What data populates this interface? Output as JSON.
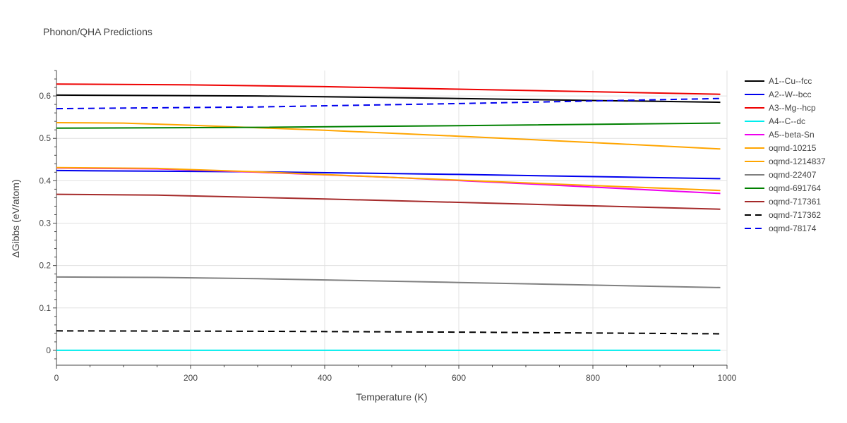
{
  "chart_data": {
    "type": "line",
    "title": "Phonon/QHA Predictions",
    "xlabel": "Temperature (K)",
    "ylabel": "ΔGibbs (eV/atom)",
    "xlim": [
      0,
      1000
    ],
    "ylim": [
      -0.035,
      0.66
    ],
    "x_ticks": [
      0,
      200,
      400,
      600,
      800,
      1000
    ],
    "y_ticks": [
      0,
      0.1,
      0.2,
      0.3,
      0.4,
      0.5,
      0.6
    ],
    "x_tick_labels": [
      "0",
      "200",
      "400",
      "600",
      "800",
      "1000"
    ],
    "y_tick_labels": [
      "0",
      "0.1",
      "0.2",
      "0.3",
      "0.4",
      "0.5",
      "0.6"
    ],
    "grid": true,
    "legend_position": "right",
    "series": [
      {
        "name": "A1--Cu--fcc",
        "color": "#000000",
        "dash": "solid",
        "x": [
          0,
          300,
          600,
          990
        ],
        "y": [
          0.602,
          0.6,
          0.594,
          0.585
        ]
      },
      {
        "name": "A2--W--bcc",
        "color": "#0000ee",
        "dash": "solid",
        "x": [
          0,
          300,
          600,
          990
        ],
        "y": [
          0.424,
          0.421,
          0.415,
          0.405
        ]
      },
      {
        "name": "A3--Mg--hcp",
        "color": "#ee0000",
        "dash": "solid",
        "x": [
          0,
          200,
          400,
          600,
          800,
          990
        ],
        "y": [
          0.628,
          0.626,
          0.622,
          0.616,
          0.61,
          0.604
        ]
      },
      {
        "name": "A4--C--dc",
        "color": "#00eeee",
        "dash": "solid",
        "x": [
          0,
          990
        ],
        "y": [
          0.0,
          0.0
        ]
      },
      {
        "name": "A5--beta-Sn",
        "color": "#ee00ee",
        "dash": "solid",
        "x": [
          0,
          150,
          300,
          500,
          700,
          990
        ],
        "y": [
          0.43,
          0.428,
          0.42,
          0.408,
          0.393,
          0.37
        ]
      },
      {
        "name": "oqmd-10215",
        "color": "#ffa500",
        "dash": "solid",
        "x": [
          0,
          150,
          300,
          500,
          700,
          990
        ],
        "y": [
          0.431,
          0.429,
          0.421,
          0.408,
          0.395,
          0.377
        ]
      },
      {
        "name": "oqmd-1214837",
        "color": "#ffa500",
        "dash": "solid",
        "x": [
          0,
          100,
          200,
          400,
          600,
          800,
          990
        ],
        "y": [
          0.537,
          0.536,
          0.531,
          0.519,
          0.505,
          0.49,
          0.475
        ]
      },
      {
        "name": "oqmd-22407",
        "color": "#808080",
        "dash": "solid",
        "x": [
          0,
          150,
          300,
          600,
          990
        ],
        "y": [
          0.173,
          0.172,
          0.169,
          0.16,
          0.148
        ]
      },
      {
        "name": "oqmd-691764",
        "color": "#008000",
        "dash": "solid",
        "x": [
          0,
          300,
          600,
          990
        ],
        "y": [
          0.524,
          0.526,
          0.53,
          0.536
        ]
      },
      {
        "name": "oqmd-717361",
        "color": "#a52a2a",
        "dash": "solid",
        "x": [
          0,
          150,
          400,
          700,
          990
        ],
        "y": [
          0.368,
          0.366,
          0.357,
          0.345,
          0.333
        ]
      },
      {
        "name": "oqmd-717362",
        "color": "#000000",
        "dash": "dash",
        "x": [
          0,
          300,
          600,
          990
        ],
        "y": [
          0.046,
          0.045,
          0.043,
          0.039
        ]
      },
      {
        "name": "oqmd-78174",
        "color": "#0000ee",
        "dash": "dash",
        "x": [
          0,
          300,
          600,
          990
        ],
        "y": [
          0.57,
          0.574,
          0.582,
          0.594
        ]
      }
    ]
  }
}
